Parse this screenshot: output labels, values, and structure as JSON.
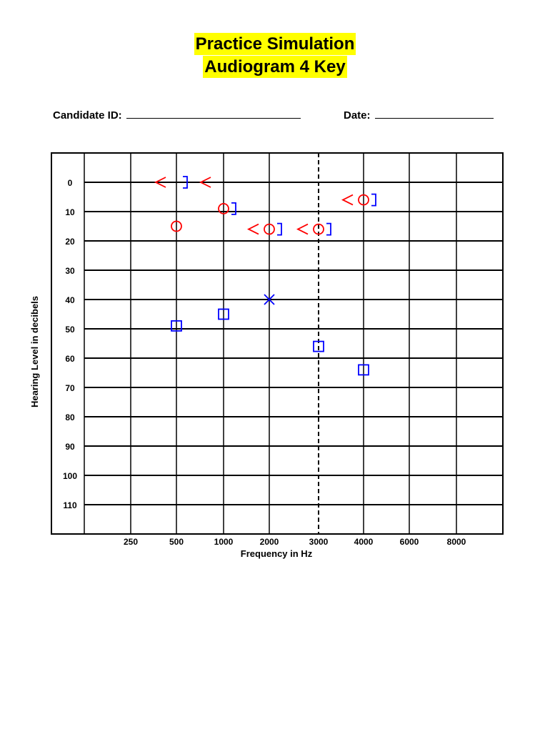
{
  "header": {
    "title_line1": "Practice Simulation",
    "title_line2": "Audiogram 4 Key",
    "candidate_label": "Candidate ID:",
    "date_label": "Date:"
  },
  "chart_data": {
    "type": "scatter",
    "title": "Practice Simulation Audiogram 4 Key",
    "xlabel": "Frequency in Hz",
    "ylabel": "Hearing Level in decibels",
    "x_ticks": [
      "250",
      "500",
      "1000",
      "2000",
      "3000",
      "4000",
      "6000",
      "8000"
    ],
    "y_ticks": [
      "0",
      "10",
      "20",
      "30",
      "40",
      "50",
      "60",
      "70",
      "80",
      "90",
      "100",
      "110"
    ],
    "ylim": [
      -10,
      120
    ],
    "y_inverted": true,
    "dashed_vertical_line_at": "3000",
    "grid": true,
    "series": [
      {
        "symbol": "circle",
        "color": "#ff0000",
        "points": [
          {
            "x": "500",
            "y": 15
          },
          {
            "x": "1000",
            "y": 9
          },
          {
            "x": "2000",
            "y": 16
          },
          {
            "x": "3000",
            "y": 16
          },
          {
            "x": "4000",
            "y": 6
          }
        ]
      },
      {
        "symbol": "open-angle-left",
        "color": "#ff0000",
        "points": [
          {
            "x": "500",
            "y": 0
          },
          {
            "x": "1000",
            "y": 0
          },
          {
            "x": "2000",
            "y": 16
          },
          {
            "x": "3000",
            "y": 16
          },
          {
            "x": "4000",
            "y": 6
          }
        ]
      },
      {
        "symbol": "bracket-right",
        "color": "#0000ff",
        "points": [
          {
            "x": "500",
            "y": 0
          },
          {
            "x": "1000",
            "y": 9
          },
          {
            "x": "2000",
            "y": 16
          },
          {
            "x": "3000",
            "y": 16
          },
          {
            "x": "4000",
            "y": 6
          }
        ]
      },
      {
        "symbol": "square",
        "color": "#0000ff",
        "points": [
          {
            "x": "500",
            "y": 49
          },
          {
            "x": "1000",
            "y": 45
          },
          {
            "x": "3000",
            "y": 56
          },
          {
            "x": "4000",
            "y": 64
          }
        ]
      },
      {
        "symbol": "cross",
        "color": "#0000ff",
        "points": [
          {
            "x": "2000",
            "y": 40
          }
        ]
      }
    ]
  }
}
